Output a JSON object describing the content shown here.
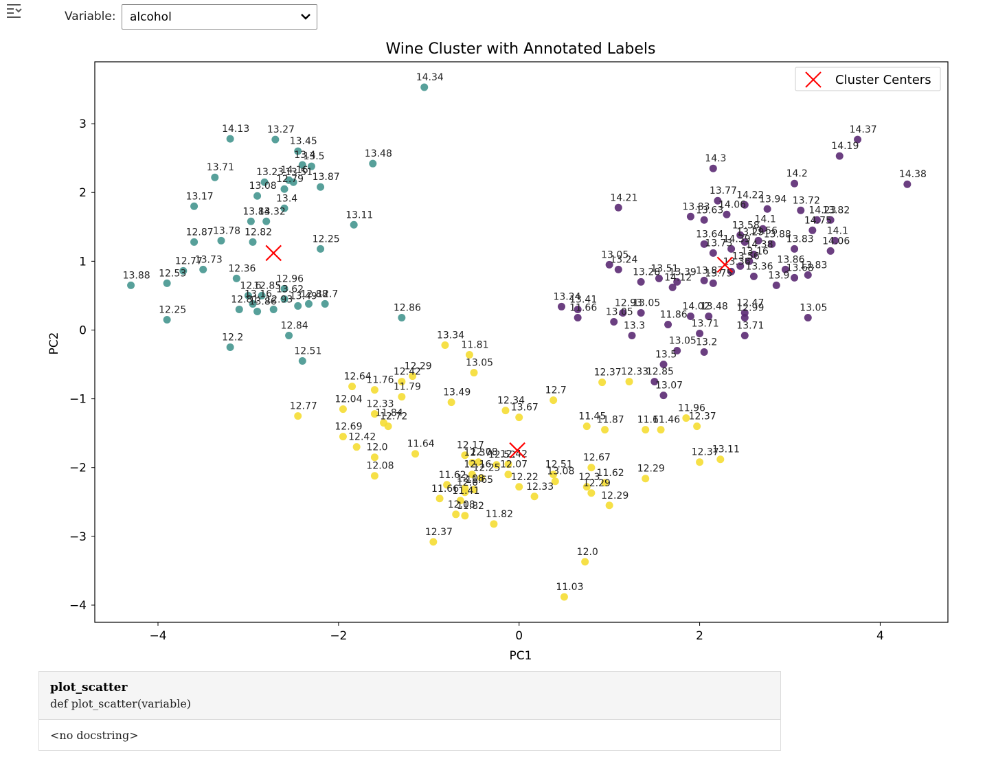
{
  "toolbar": {
    "icon": "collapse-output-icon"
  },
  "widget": {
    "label": "Variable:",
    "selected": "alcohol"
  },
  "chart_data": {
    "type": "scatter",
    "title": "Wine Cluster with Annotated Labels",
    "xlabel": "PC1",
    "ylabel": "PC2",
    "xlim": [
      -4.7,
      4.75
    ],
    "ylim": [
      -4.25,
      3.9
    ],
    "xticks": [
      -4,
      -2,
      0,
      2,
      4
    ],
    "yticks": [
      -4,
      -3,
      -2,
      -1,
      0,
      1,
      2,
      3
    ],
    "xtick_labels": [
      "−4",
      "−2",
      "0",
      "2",
      "4"
    ],
    "ytick_labels": [
      "−4",
      "−3",
      "−2",
      "−1",
      "0",
      "1",
      "2",
      "3"
    ],
    "grid": false,
    "legend": {
      "location": "top-right",
      "entries": [
        "Cluster Centers"
      ]
    },
    "colors": {
      "cluster_0": "#45968f",
      "cluster_1": "#f5dd33",
      "cluster_2": "#5b2a73",
      "centers": "#ff0000"
    },
    "series": [
      {
        "cluster": 0,
        "points": [
          [
            -1.05,
            3.53,
            "14.34"
          ],
          [
            -3.2,
            2.78,
            "14.13"
          ],
          [
            -2.7,
            2.77,
            "13.27"
          ],
          [
            -2.45,
            2.6,
            "13.45"
          ],
          [
            -2.4,
            2.4,
            "13.4"
          ],
          [
            -2.3,
            2.38,
            "13.5"
          ],
          [
            -1.62,
            2.42,
            "13.48"
          ],
          [
            -3.37,
            2.22,
            "13.71"
          ],
          [
            -2.82,
            2.15,
            "13.23"
          ],
          [
            -2.55,
            2.18,
            "14.16"
          ],
          [
            -2.5,
            2.15,
            "13.51"
          ],
          [
            -2.2,
            2.08,
            "13.87"
          ],
          [
            -2.9,
            1.95,
            "13.08"
          ],
          [
            -2.6,
            2.05,
            "12.79"
          ],
          [
            -3.6,
            1.8,
            "13.17"
          ],
          [
            -2.6,
            1.77,
            "13.4"
          ],
          [
            -2.97,
            1.58,
            "13.84"
          ],
          [
            -2.8,
            1.58,
            "13.32"
          ],
          [
            -1.83,
            1.53,
            "13.11"
          ],
          [
            -3.3,
            1.3,
            "13.78"
          ],
          [
            -2.95,
            1.28,
            "12.82"
          ],
          [
            -3.6,
            1.28,
            "12.87"
          ],
          [
            -2.2,
            1.18,
            "12.25"
          ],
          [
            -3.72,
            0.86,
            "12.77"
          ],
          [
            -3.5,
            0.88,
            "13.73"
          ],
          [
            -3.13,
            0.75,
            "12.36"
          ],
          [
            -4.3,
            0.65,
            "13.88"
          ],
          [
            -3.9,
            0.68,
            "12.53"
          ],
          [
            -2.6,
            0.6,
            "12.96"
          ],
          [
            -3.0,
            0.5,
            "12.6"
          ],
          [
            -2.85,
            0.5,
            "12.85"
          ],
          [
            -2.6,
            0.45,
            "13.62"
          ],
          [
            -2.95,
            0.38,
            "13.16"
          ],
          [
            -2.45,
            0.35,
            "13.49"
          ],
          [
            -2.33,
            0.38,
            "12.88"
          ],
          [
            -2.15,
            0.38,
            "12.7"
          ],
          [
            -3.1,
            0.3,
            "12.81"
          ],
          [
            -2.9,
            0.27,
            "13.86"
          ],
          [
            -2.72,
            0.3,
            "12.93"
          ],
          [
            -1.3,
            0.18,
            "12.86"
          ],
          [
            -3.9,
            0.15,
            "12.25"
          ],
          [
            -2.55,
            -0.08,
            "12.84"
          ],
          [
            -3.2,
            -0.25,
            "12.2"
          ],
          [
            -2.4,
            -0.45,
            "12.51"
          ]
        ]
      },
      {
        "cluster": 1,
        "points": [
          [
            -0.82,
            -0.22,
            "13.34"
          ],
          [
            -0.55,
            -0.36,
            "11.81"
          ],
          [
            -0.5,
            -0.62,
            "13.05"
          ],
          [
            -1.18,
            -0.67,
            "12.29"
          ],
          [
            -1.3,
            -0.75,
            "12.42"
          ],
          [
            -1.85,
            -0.82,
            "12.64"
          ],
          [
            -1.6,
            -0.87,
            "11.76"
          ],
          [
            -1.3,
            -0.97,
            "11.79"
          ],
          [
            -0.75,
            -1.05,
            "13.49"
          ],
          [
            0.38,
            -1.02,
            "12.7"
          ],
          [
            -0.15,
            -1.17,
            "12.34"
          ],
          [
            0.0,
            -1.27,
            "13.67"
          ],
          [
            -2.45,
            -1.25,
            "12.77"
          ],
          [
            -1.95,
            -1.15,
            "12.04"
          ],
          [
            -1.6,
            -1.22,
            "12.33"
          ],
          [
            -1.5,
            -1.35,
            "11.84"
          ],
          [
            -1.45,
            -1.4,
            "12.72"
          ],
          [
            -1.95,
            -1.55,
            "12.69"
          ],
          [
            -1.8,
            -1.7,
            "12.42"
          ],
          [
            -1.6,
            -1.85,
            "12.0"
          ],
          [
            -1.6,
            -2.12,
            "12.08"
          ],
          [
            -1.15,
            -1.8,
            "11.64"
          ],
          [
            -0.6,
            -1.82,
            "12.17"
          ],
          [
            -0.45,
            -1.92,
            "12.08"
          ],
          [
            -0.52,
            -1.93,
            "12.37"
          ],
          [
            -0.25,
            -1.96,
            "12.52"
          ],
          [
            -0.12,
            -1.95,
            "12.42"
          ],
          [
            -0.12,
            -2.1,
            "12.07"
          ],
          [
            -0.52,
            -2.1,
            "12.16"
          ],
          [
            -0.42,
            -2.15,
            "12.25"
          ],
          [
            -0.8,
            -2.25,
            "11.62"
          ],
          [
            -0.6,
            -2.3,
            "12.08"
          ],
          [
            -0.5,
            -2.32,
            "11.65"
          ],
          [
            -0.6,
            -2.36,
            "12.0"
          ],
          [
            -0.88,
            -2.45,
            "11.66"
          ],
          [
            -0.65,
            -2.48,
            "11.41"
          ],
          [
            -0.7,
            -2.68,
            "12.08"
          ],
          [
            -0.6,
            -2.7,
            "11.82"
          ],
          [
            -0.28,
            -2.82,
            "11.82"
          ],
          [
            0.0,
            -2.28,
            "12.22"
          ],
          [
            0.17,
            -2.42,
            "12.33"
          ],
          [
            0.38,
            -2.1,
            "12.51"
          ],
          [
            0.4,
            -2.2,
            "13.08"
          ],
          [
            0.75,
            -2.28,
            "12.3"
          ],
          [
            0.8,
            -2.37,
            "12.29"
          ],
          [
            0.8,
            -2.0,
            "12.67"
          ],
          [
            0.95,
            -2.22,
            "11.62"
          ],
          [
            1.4,
            -2.16,
            "12.29"
          ],
          [
            1.0,
            -2.55,
            "12.29"
          ],
          [
            0.75,
            -1.4,
            "11.45"
          ],
          [
            0.95,
            -1.45,
            "11.87"
          ],
          [
            1.4,
            -1.45,
            "11.61"
          ],
          [
            1.57,
            -1.45,
            "11.46"
          ],
          [
            0.92,
            -0.76,
            "12.37"
          ],
          [
            1.22,
            -0.75,
            "12.33"
          ],
          [
            1.85,
            -1.28,
            "11.96"
          ],
          [
            1.97,
            -1.4,
            "12.37"
          ],
          [
            2.0,
            -1.92,
            "12.37"
          ],
          [
            2.23,
            -1.88,
            "13.11"
          ],
          [
            0.73,
            -3.37,
            "12.0"
          ],
          [
            0.5,
            -3.88,
            "11.03"
          ],
          [
            -0.95,
            -3.08,
            "12.37"
          ]
        ]
      },
      {
        "cluster": 2,
        "points": [
          [
            3.75,
            2.77,
            "14.37"
          ],
          [
            3.55,
            2.53,
            "14.19"
          ],
          [
            2.15,
            2.35,
            "14.3"
          ],
          [
            3.05,
            2.13,
            "14.2"
          ],
          [
            4.3,
            2.12,
            "14.38"
          ],
          [
            1.1,
            1.78,
            "14.21"
          ],
          [
            2.2,
            1.88,
            "13.77"
          ],
          [
            2.5,
            1.82,
            "14.22"
          ],
          [
            2.75,
            1.76,
            "13.94"
          ],
          [
            1.9,
            1.65,
            "13.83"
          ],
          [
            2.05,
            1.6,
            "13.63"
          ],
          [
            2.3,
            1.68,
            "14.06"
          ],
          [
            3.12,
            1.74,
            "13.72"
          ],
          [
            3.3,
            1.6,
            "14.23"
          ],
          [
            3.45,
            1.6,
            "13.82"
          ],
          [
            2.7,
            1.47,
            "14.1"
          ],
          [
            2.5,
            1.28,
            "13.29"
          ],
          [
            2.45,
            1.38,
            "13.58"
          ],
          [
            2.65,
            1.3,
            "13.56"
          ],
          [
            3.25,
            1.45,
            "14.75"
          ],
          [
            3.5,
            1.3,
            "14.1"
          ],
          [
            2.05,
            1.25,
            "13.64"
          ],
          [
            2.35,
            1.18,
            "14.39"
          ],
          [
            2.15,
            1.12,
            "13.73"
          ],
          [
            2.6,
            1.1,
            "14.38"
          ],
          [
            2.8,
            1.25,
            "13.88"
          ],
          [
            3.05,
            1.18,
            "13.83"
          ],
          [
            3.45,
            1.15,
            "14.06"
          ],
          [
            2.55,
            1.0,
            "13.16"
          ],
          [
            2.45,
            0.93,
            "13.56"
          ],
          [
            2.35,
            0.85,
            "13.36"
          ],
          [
            2.6,
            0.78,
            "13.36"
          ],
          [
            2.95,
            0.88,
            "13.86"
          ],
          [
            3.05,
            0.76,
            "13.68"
          ],
          [
            3.2,
            0.8,
            "13.83"
          ],
          [
            2.85,
            0.65,
            "13.9"
          ],
          [
            1.0,
            0.95,
            "13.05"
          ],
          [
            1.1,
            0.88,
            "13.24"
          ],
          [
            1.35,
            0.7,
            "13.28"
          ],
          [
            1.55,
            0.75,
            "13.51"
          ],
          [
            1.75,
            0.7,
            "13.39"
          ],
          [
            1.7,
            0.62,
            "14.12"
          ],
          [
            2.05,
            0.72,
            "13.87"
          ],
          [
            2.15,
            0.68,
            "13.75"
          ],
          [
            0.47,
            0.34,
            "13.24"
          ],
          [
            0.65,
            0.3,
            "13.41"
          ],
          [
            1.15,
            0.25,
            "12.93"
          ],
          [
            1.35,
            0.25,
            "13.05"
          ],
          [
            0.65,
            0.18,
            "11.66"
          ],
          [
            1.05,
            0.12,
            "13.05"
          ],
          [
            1.65,
            0.08,
            "11.86"
          ],
          [
            1.9,
            0.2,
            "14.02"
          ],
          [
            2.1,
            0.2,
            "13.48"
          ],
          [
            2.5,
            0.25,
            "12.47"
          ],
          [
            2.5,
            0.18,
            "12.99"
          ],
          [
            3.2,
            0.18,
            "13.05"
          ],
          [
            1.25,
            -0.08,
            "13.3"
          ],
          [
            2.0,
            -0.05,
            "13.71"
          ],
          [
            2.5,
            -0.08,
            "13.71"
          ],
          [
            1.75,
            -0.3,
            "13.05"
          ],
          [
            2.05,
            -0.32,
            "13.2"
          ],
          [
            1.6,
            -0.5,
            "13.5"
          ],
          [
            1.5,
            -0.75,
            "12.85"
          ],
          [
            1.6,
            -0.95,
            "13.07"
          ]
        ]
      }
    ],
    "centers": [
      [
        -2.72,
        1.12
      ],
      [
        -0.02,
        -1.75
      ],
      [
        2.28,
        0.95
      ]
    ]
  },
  "doc": {
    "name": "plot_scatter",
    "signature": "def plot_scatter(variable)",
    "docstring": "<no docstring>"
  }
}
